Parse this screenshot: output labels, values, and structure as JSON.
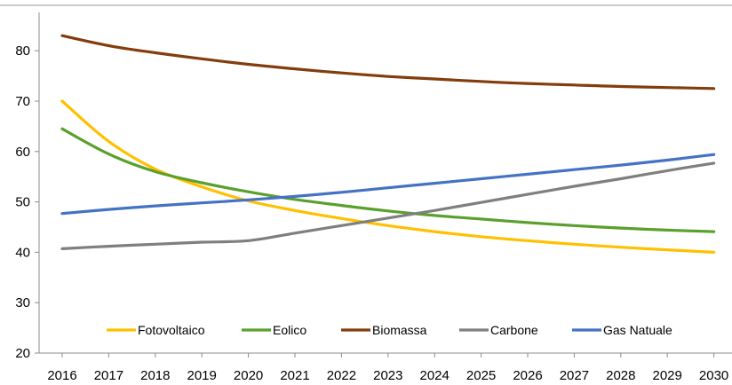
{
  "chart_data": {
    "type": "line",
    "title": "",
    "xlabel": "",
    "ylabel": "",
    "x": [
      "2016",
      "2017",
      "2018",
      "2019",
      "2020",
      "2021",
      "2022",
      "2023",
      "2024",
      "2025",
      "2026",
      "2027",
      "2028",
      "2029",
      "2030"
    ],
    "ylim": [
      20,
      86
    ],
    "yticks": [
      20,
      30,
      40,
      50,
      60,
      70,
      80
    ],
    "grid": false,
    "legend_position": "bottom",
    "series": [
      {
        "name": "Fotovoltaico",
        "color": "#FFC000",
        "values": [
          70,
          62,
          56.5,
          53,
          50.2,
          48.3,
          46.7,
          45.3,
          44.1,
          43.1,
          42.3,
          41.6,
          41,
          40.5,
          40
        ]
      },
      {
        "name": "Eolico",
        "color": "#5AA02C",
        "values": [
          64.5,
          59.5,
          56,
          53.8,
          52,
          50.5,
          49.3,
          48.2,
          47.3,
          46.6,
          45.9,
          45.3,
          44.8,
          44.4,
          44.1
        ]
      },
      {
        "name": "Biomassa",
        "color": "#843C0C",
        "values": [
          83,
          81,
          79.6,
          78.4,
          77.3,
          76.4,
          75.6,
          74.9,
          74.4,
          73.9,
          73.5,
          73.2,
          72.9,
          72.7,
          72.5
        ]
      },
      {
        "name": "Carbone",
        "color": "#7F7F7F",
        "values": [
          40.7,
          41.2,
          41.6,
          42,
          42.3,
          43.8,
          45.3,
          46.8,
          48.3,
          49.9,
          51.5,
          53.1,
          54.6,
          56.2,
          57.7
        ]
      },
      {
        "name": "Gas Natuale",
        "color": "#4472C4",
        "values": [
          47.7,
          48.5,
          49.2,
          49.8,
          50.4,
          51.1,
          51.9,
          52.8,
          53.7,
          54.6,
          55.5,
          56.4,
          57.3,
          58.3,
          59.4
        ]
      }
    ]
  }
}
